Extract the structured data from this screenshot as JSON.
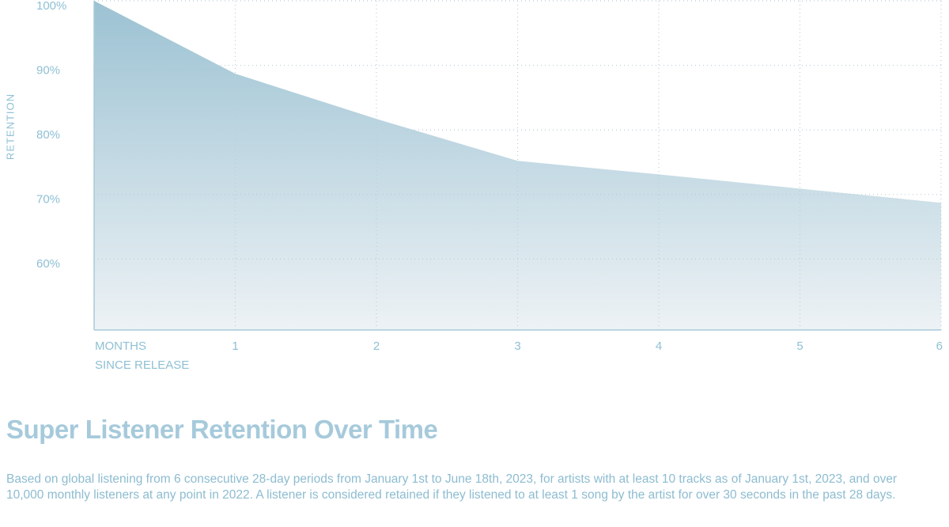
{
  "chart_data": {
    "type": "area",
    "title": "Super Listener Retention Over Time",
    "description": "Based on global listening from 6 consecutive 28-day periods from January 1st to June 18th, 2023, for artists with at least 10 tracks as of January 1st, 2023, and over 10,000 monthly listeners at any point in 2022. A listener is considered retained if they listened to at least 1 song by the artist for over 30 seconds in the past 28 days.",
    "y_label": "RETENTION",
    "x_label": [
      "MONTHS",
      "SINCE RELEASE"
    ],
    "x": [
      0,
      1,
      2,
      3,
      4,
      5,
      6
    ],
    "y": [
      100,
      88.7,
      81.7,
      75.2,
      73.1,
      70.9,
      68.7
    ],
    "color": "#9cc2d3",
    "xlim": [
      0,
      6
    ],
    "xticks": [
      1,
      2,
      3,
      4,
      5,
      6
    ],
    "ylim": [
      49,
      100
    ],
    "yticks": [
      {
        "value": 100,
        "label": "100%"
      },
      {
        "value": 90,
        "label": "90%"
      },
      {
        "value": 80,
        "label": "80%"
      },
      {
        "value": 70,
        "label": "70%"
      },
      {
        "value": 60,
        "label": "60%"
      }
    ],
    "grid": true
  }
}
